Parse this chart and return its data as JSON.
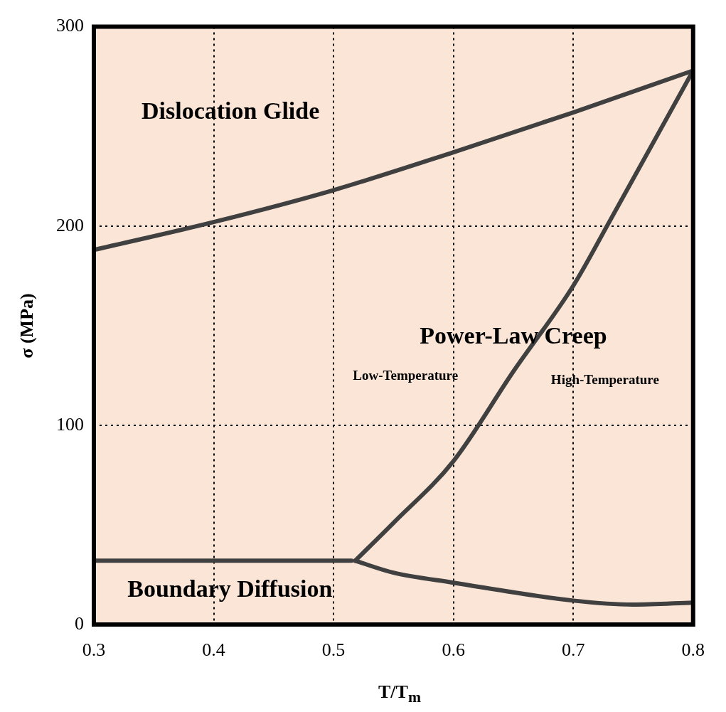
{
  "chart_data": {
    "type": "line",
    "xlabel": "T/T$_{m}$",
    "ylabel": "σ (MPa)",
    "xlim": [
      0.3,
      0.8
    ],
    "ylim": [
      0,
      300
    ],
    "xticks": [
      0.3,
      0.4,
      0.5,
      0.6,
      0.7,
      0.8
    ],
    "yticks": [
      0,
      100,
      200,
      300
    ],
    "grid": true,
    "line_style": "solid",
    "marker": "none",
    "legend": false,
    "series": [
      {
        "color": "#404040",
        "x": [
          0.3,
          0.4,
          0.5,
          0.6,
          0.7,
          0.8
        ],
        "values": [
          188,
          202,
          218,
          237,
          257,
          278
        ]
      },
      {
        "color": "#404040",
        "x": [
          0.3,
          0.515
        ],
        "values": [
          32,
          32
        ]
      },
      {
        "color": "#404040",
        "x": [
          0.518,
          0.55,
          0.6,
          0.65,
          0.7,
          0.73,
          0.8
        ],
        "values": [
          32,
          51,
          82,
          127,
          170,
          202,
          278
        ]
      },
      {
        "color": "#404040",
        "x": [
          0.518,
          0.55,
          0.6,
          0.7,
          0.75,
          0.8
        ],
        "values": [
          32,
          26,
          21,
          12,
          10,
          11
        ]
      }
    ],
    "annotations": [
      "Dislocation Glide",
      "Power-Law Creep",
      "Low-Temperature",
      "High-Temperature",
      "Boundary Diffusion"
    ]
  }
}
